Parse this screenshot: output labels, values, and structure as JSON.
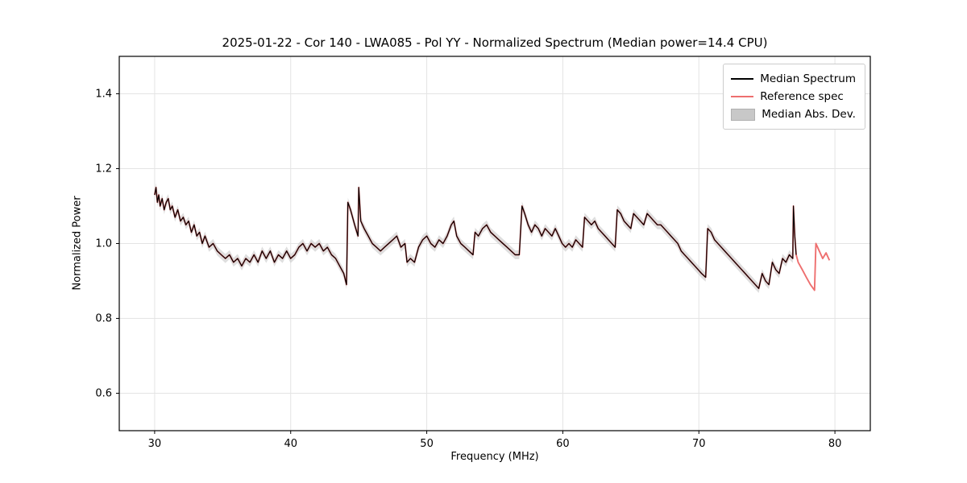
{
  "chart_data": {
    "type": "line",
    "title": "2025-01-22 - Cor 140 - LWA085 - Pol YY - Normalized Spectrum (Median power=14.4 CPU)",
    "xlabel": "Frequency (MHz)",
    "ylabel": "Normalized Power",
    "xlim": [
      27.4,
      82.6
    ],
    "ylim": [
      0.5,
      1.5
    ],
    "xticks": [
      30,
      40,
      50,
      60,
      70,
      80
    ],
    "yticks": [
      0.6,
      0.8,
      1.0,
      1.2,
      1.4
    ],
    "grid": true,
    "legend_position": "upper right",
    "legend_items": [
      {
        "label": "Median Spectrum",
        "type": "line",
        "color": "#000000"
      },
      {
        "label": "Reference spec",
        "type": "line",
        "color": "#ee6f6f"
      },
      {
        "label": "Median Abs. Dev.",
        "type": "patch",
        "color": "#c8c8c8"
      }
    ],
    "colors": {
      "median": "#000000",
      "reference": "#ee6f6f",
      "band": "#c8c8c8",
      "grid": "#e4e4e4",
      "frame": "#000000"
    },
    "mad": 0.012,
    "median": {
      "name": "Median Spectrum",
      "x": [
        30.0,
        30.1,
        30.2,
        30.3,
        30.4,
        30.55,
        30.7,
        30.85,
        31.0,
        31.15,
        31.3,
        31.5,
        31.7,
        31.9,
        32.1,
        32.3,
        32.5,
        32.7,
        32.9,
        33.1,
        33.3,
        33.5,
        33.7,
        34.0,
        34.3,
        34.6,
        34.9,
        35.2,
        35.5,
        35.8,
        36.1,
        36.4,
        36.7,
        37.0,
        37.3,
        37.6,
        37.9,
        38.2,
        38.5,
        38.8,
        39.1,
        39.4,
        39.7,
        40.0,
        40.3,
        40.6,
        40.9,
        41.2,
        41.5,
        41.8,
        42.1,
        42.4,
        42.7,
        43.0,
        43.3,
        43.6,
        43.9,
        44.1,
        44.2,
        44.4,
        44.7,
        44.95,
        45.0,
        45.15,
        45.4,
        45.7,
        46.0,
        46.3,
        46.6,
        46.9,
        47.2,
        47.5,
        47.8,
        48.1,
        48.4,
        48.55,
        48.8,
        49.1,
        49.4,
        49.7,
        50.0,
        50.3,
        50.6,
        50.9,
        51.2,
        51.5,
        51.8,
        52.0,
        52.2,
        52.5,
        52.8,
        53.1,
        53.4,
        53.55,
        53.8,
        54.1,
        54.4,
        54.7,
        55.0,
        55.3,
        55.6,
        55.9,
        56.2,
        56.5,
        56.8,
        57.0,
        57.2,
        57.45,
        57.7,
        57.95,
        58.2,
        58.45,
        58.7,
        58.95,
        59.2,
        59.45,
        59.7,
        59.95,
        60.2,
        60.45,
        60.7,
        60.95,
        61.2,
        61.45,
        61.6,
        61.85,
        62.1,
        62.35,
        62.6,
        62.85,
        63.1,
        63.35,
        63.6,
        63.85,
        64.0,
        64.25,
        64.5,
        64.75,
        65.0,
        65.2,
        65.45,
        65.7,
        65.95,
        66.2,
        66.45,
        66.7,
        66.95,
        67.2,
        67.45,
        67.7,
        67.95,
        68.2,
        68.45,
        68.7,
        68.95,
        69.2,
        69.45,
        69.7,
        69.95,
        70.2,
        70.5,
        70.65,
        70.9,
        71.15,
        71.4,
        71.65,
        71.9,
        72.15,
        72.4,
        72.65,
        72.9,
        73.15,
        73.4,
        73.65,
        73.9,
        74.15,
        74.4,
        74.65,
        74.9,
        75.15,
        75.4,
        75.65,
        75.9,
        76.15,
        76.4,
        76.65,
        76.9,
        76.95,
        77.05,
        77.15
      ],
      "y": [
        1.13,
        1.15,
        1.11,
        1.13,
        1.1,
        1.12,
        1.09,
        1.11,
        1.12,
        1.09,
        1.1,
        1.07,
        1.09,
        1.06,
        1.07,
        1.05,
        1.06,
        1.03,
        1.05,
        1.02,
        1.03,
        1.0,
        1.02,
        0.99,
        1.0,
        0.98,
        0.97,
        0.96,
        0.97,
        0.95,
        0.96,
        0.94,
        0.96,
        0.95,
        0.97,
        0.95,
        0.98,
        0.96,
        0.98,
        0.95,
        0.97,
        0.96,
        0.98,
        0.96,
        0.97,
        0.99,
        1.0,
        0.98,
        1.0,
        0.99,
        1.0,
        0.98,
        0.99,
        0.97,
        0.96,
        0.94,
        0.92,
        0.89,
        1.11,
        1.09,
        1.05,
        1.02,
        1.15,
        1.06,
        1.04,
        1.02,
        1.0,
        0.99,
        0.98,
        0.99,
        1.0,
        1.01,
        1.02,
        0.99,
        1.0,
        0.95,
        0.96,
        0.95,
        0.99,
        1.01,
        1.02,
        1.0,
        0.99,
        1.01,
        1.0,
        1.02,
        1.05,
        1.06,
        1.02,
        1.0,
        0.99,
        0.98,
        0.97,
        1.03,
        1.02,
        1.04,
        1.05,
        1.03,
        1.02,
        1.01,
        1.0,
        0.99,
        0.98,
        0.97,
        0.97,
        1.1,
        1.08,
        1.05,
        1.03,
        1.05,
        1.04,
        1.02,
        1.04,
        1.03,
        1.02,
        1.04,
        1.02,
        1.0,
        0.99,
        1.0,
        0.99,
        1.01,
        1.0,
        0.99,
        1.07,
        1.06,
        1.05,
        1.06,
        1.04,
        1.03,
        1.02,
        1.01,
        1.0,
        0.99,
        1.09,
        1.08,
        1.06,
        1.05,
        1.04,
        1.08,
        1.07,
        1.06,
        1.05,
        1.08,
        1.07,
        1.06,
        1.05,
        1.05,
        1.04,
        1.03,
        1.02,
        1.01,
        1.0,
        0.98,
        0.97,
        0.96,
        0.95,
        0.94,
        0.93,
        0.92,
        0.91,
        1.04,
        1.03,
        1.01,
        1.0,
        0.99,
        0.98,
        0.97,
        0.96,
        0.95,
        0.94,
        0.93,
        0.92,
        0.91,
        0.9,
        0.89,
        0.88,
        0.92,
        0.9,
        0.89,
        0.95,
        0.93,
        0.92,
        0.96,
        0.95,
        0.97,
        0.96,
        1.1,
        1.02,
        0.97
      ]
    },
    "reference": {
      "name": "Reference spec",
      "overlaps": "Median Spectrum",
      "extra_x": [
        77.3,
        77.6,
        77.9,
        78.2,
        78.5,
        78.6,
        78.85,
        79.1,
        79.35,
        79.6
      ],
      "extra_y": [
        0.95,
        0.93,
        0.91,
        0.89,
        0.875,
        1.0,
        0.98,
        0.96,
        0.975,
        0.955
      ]
    }
  }
}
